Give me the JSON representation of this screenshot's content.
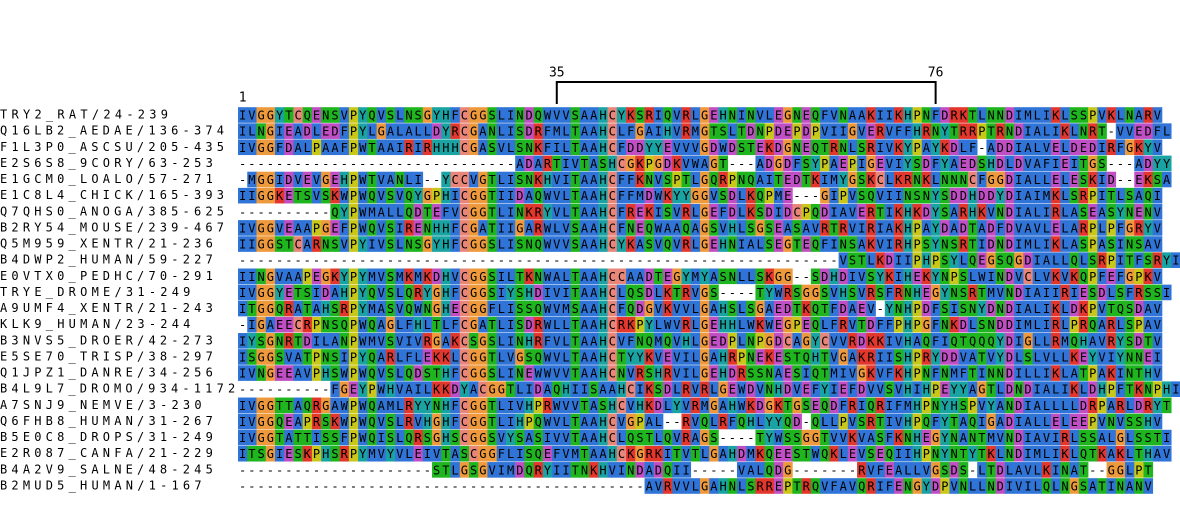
{
  "ruler": {
    "start": 1,
    "markers": [
      35,
      76
    ]
  },
  "sequences": [
    {
      "name": "TRY2_RAT/24-239",
      "seq": "IVGGYTCQENSVPYQVSLNSGYHFCGGSLINDQWVVSAAHCYKSRIQVRLGEHNINVLEGNEQFVNAAKIIKHPNFDRKTLNNDIMLIKLSSPVKLNARV"
    },
    {
      "name": "Q16LB2_AEDAE/136-374",
      "seq": "ILNGIEADLEDFPYLGALALLDYRCGANLISDRFMLTAAHCLFGAIHVRMGTSLTDNPDEPDPVIIGVERVFFHRNYTRRPTRNDIALIKLNRT-VVEDFL"
    },
    {
      "name": "F1L3P0_ASCSU/205-435",
      "seq": "IVGGFDALPAAFPWTAAIRIRHHHCGASVLSNKFILTAAHCFDDYYEVVVGDWDSTEKDGNEQTRNLSRIVKYPAYKDLF-ADDIALVELDEDIRFGKYV"
    },
    {
      "name": "E2S6S8_9CORY/63-253",
      "seq": "------------------------------ADARTIVTASHCGKPGDKVWAGT---ADGDFSYPAEPIGEVIYSDFYAEDSHDLDVAFIEITGS---ADYY"
    },
    {
      "name": "E1GCM0_LOALO/57-271",
      "seq": "-MGGIDVEVGEHPWTVANLI--YCCVGTLISNKHVITAAHCFFKNVSPTLGQRPNQAITEDTKIMYGSKCLKRNKLNNNCFGGDIALLELESKID--EKSA"
    },
    {
      "name": "E1C8L4_CHICK/165-393",
      "seq": "IIGGKETSVSKWPWQVSVQYGPHICGGTIIDAQWVLTAAHCFFMDWKYYGGVSDLKQPME---GIPVSQVIINSNYSDDHDDYDIAIMKLSRPITLSAQI"
    },
    {
      "name": "Q7QHS0_ANOGA/385-625",
      "seq": "----------QYPWMALLQDTEFVCGGTLINKRYVLTAAHCFREKISVRLGEFDLKSDIDCPQDIAVERTIKHKDYSARHKVNDIALIRLASEASYNENV"
    },
    {
      "name": "B2RY54_MOUSE/239-467",
      "seq": "IVGGVEAAPGEFPWQVSIRENHHFCGATIIGARWLVSAAHCFNEQWAAQAGSVHLSGSEASAVRTRVIRIAKHPAYDADTADFDVAVLELARPLPFGRYV"
    },
    {
      "name": "Q5M959_XENTR/21-236",
      "seq": "IIGGSTCARNSVPYIVSLNSGYHFCGGSLISNQWVVSAAHCYKASVQVRLGEHNIALSEGTEQFINSAKVIRHPSYNSRTIDNDIMLIKLASPASINSAV"
    },
    {
      "name": "B4DWP2_HUMAN/59-227",
      "seq": "-----------------------------------------------------------------VSTLKDIIPHPSYLQEGSQGDIALLQLSRPITFSRYI"
    },
    {
      "name": "E0VTX0_PEDHC/70-291",
      "seq": "IINGVAAPEGKYPYMVSMKMKDHVCGGSILTKNWALTAAHCCAADTEGYMYASNLLSKGG--SDHDIVSYKIHEKYNPSLWINDVCLVKVKQPFEFGPKV"
    },
    {
      "name": "TRYE_DROME/31-249",
      "seq": "IVGGYETSIDAHPYQVSLQRYGHFCGGSIYSHDIVITAAHCLQSDLKTRVGS----TYWRSGGSVHSVRSFRNHEGYNSRTMVNDIAIIRIESDLSFRSSI"
    },
    {
      "name": "A9UMF4_XENTR/21-243",
      "seq": "ITGGQRATAHSRPYMASVQWNGHECGGFLISSQWVMSAAHCFQDGVKVVLGAHSLSGAEDTKQTFDAEV-YNHPDFSISNYDNDIALIKLDKPVTQSDAV"
    },
    {
      "name": "KLK9_HUMAN/23-244",
      "seq": "-IGAEECRPNSQPWQAGLFHLTLFCGATLISDRWLLTAAHCRKPYLWVRLGEHHLWKWEGPEQLFRVTDFFPHPGFNKDLSNDDIMLIRLPRQARLSPAV"
    },
    {
      "name": "B3NVS5_DROER/42-273",
      "seq": "IYSGNRTDILANPWMVSVIVRGAKCSGSLINHRFVLTAAHCVFNQMQVHLGEDPLNPGDCAGYCVVRDKKIVHAQFIQTQQQYDIGLLRMQHAVRYSDTV"
    },
    {
      "name": "E5SE70_TRISP/38-297",
      "seq": "ISGGSVATPNSIPYQARLFLEKKLCGGTLVGSQWVLTAAHCTYYKVEVILGAHRPNEKESTQHTVGAKRIISHPRYDDVATVYDLSLVLLKEYVIYNNEI"
    },
    {
      "name": "Q1JPZ1_DANRE/34-256",
      "seq": "IVNGEEAVPHSWPWQVSLQDSTHFCGGSLINEWWVVTAAHCNVRSHRVILGEHDRSSNAESIQTMIVGKVFKHPNFNMFTINNDILLIKLATPAKINTHV"
    },
    {
      "name": "B4L9L7_DROMO/934-1172",
      "seq": "----------FGEYPWHVAILKKDYACGGTLIDAQHIISAAHCIKSDLRVRLGEWDVNHDVEFYIEFDVVSVHIHPEYYAGTLDNDIALIKLDHPFTKNPHI"
    },
    {
      "name": "A7SNJ9_NEMVE/3-230",
      "seq": "IVGGTTAQRGAWPWQAMLRYYNHFCGGTLIVHPRWVVTASHCVHKDLYVRMGAHWKDGKTGSEQDFRIQRIFMHPNYHSPVYANDIALLLLDRPARLDRYT"
    },
    {
      "name": "Q6FHB8_HUMAN/31-267",
      "seq": "IVGGQEAPRSKWPWQVSLRVHGHFCGGTLIHPQWVLTAAHCVGPAL--RVQLRFQHLYYQD-QLLPVSRTIVHPQFYTAQIGADIALLELEEPVNVSSHV"
    },
    {
      "name": "B5E0C8_DROPS/31-249",
      "seq": "IVGGTATTISSFPWQISLQRSGHSCGGSVYSASIVVTAAHCLQSTLQVRAGS----TYWSSGGTVVKVASFKNHEGYNANTMVNDIAVIRLSSALGLSSTI"
    },
    {
      "name": "E2R087_CANFA/21-229",
      "seq": "ITSGIESKPHSRPYMVYVLEIVTASCGGFLISQEFVMTAAHCKGRKITVTLGAHDMKQEESTWQKLEVSEQIIHPNYNTYTKLNDIMLIKLQTKAKLTHAV"
    },
    {
      "name": "B4A2V9_SALNE/48-245",
      "seq": "---------------------STLGSGVIMDQRYIITNKHVINDADQII-----VALQDG-------RVFEALLVGSDS-LTDLAVLKINAT--GGLPT"
    },
    {
      "name": "B2MUD5_HUMAN/1-167",
      "seq": "--------------------------------------------AVRVVLGAHNLSRREPTRQVFAVQRIFENGYDPVNLLNDIVILQLNGSATINANV"
    }
  ]
}
